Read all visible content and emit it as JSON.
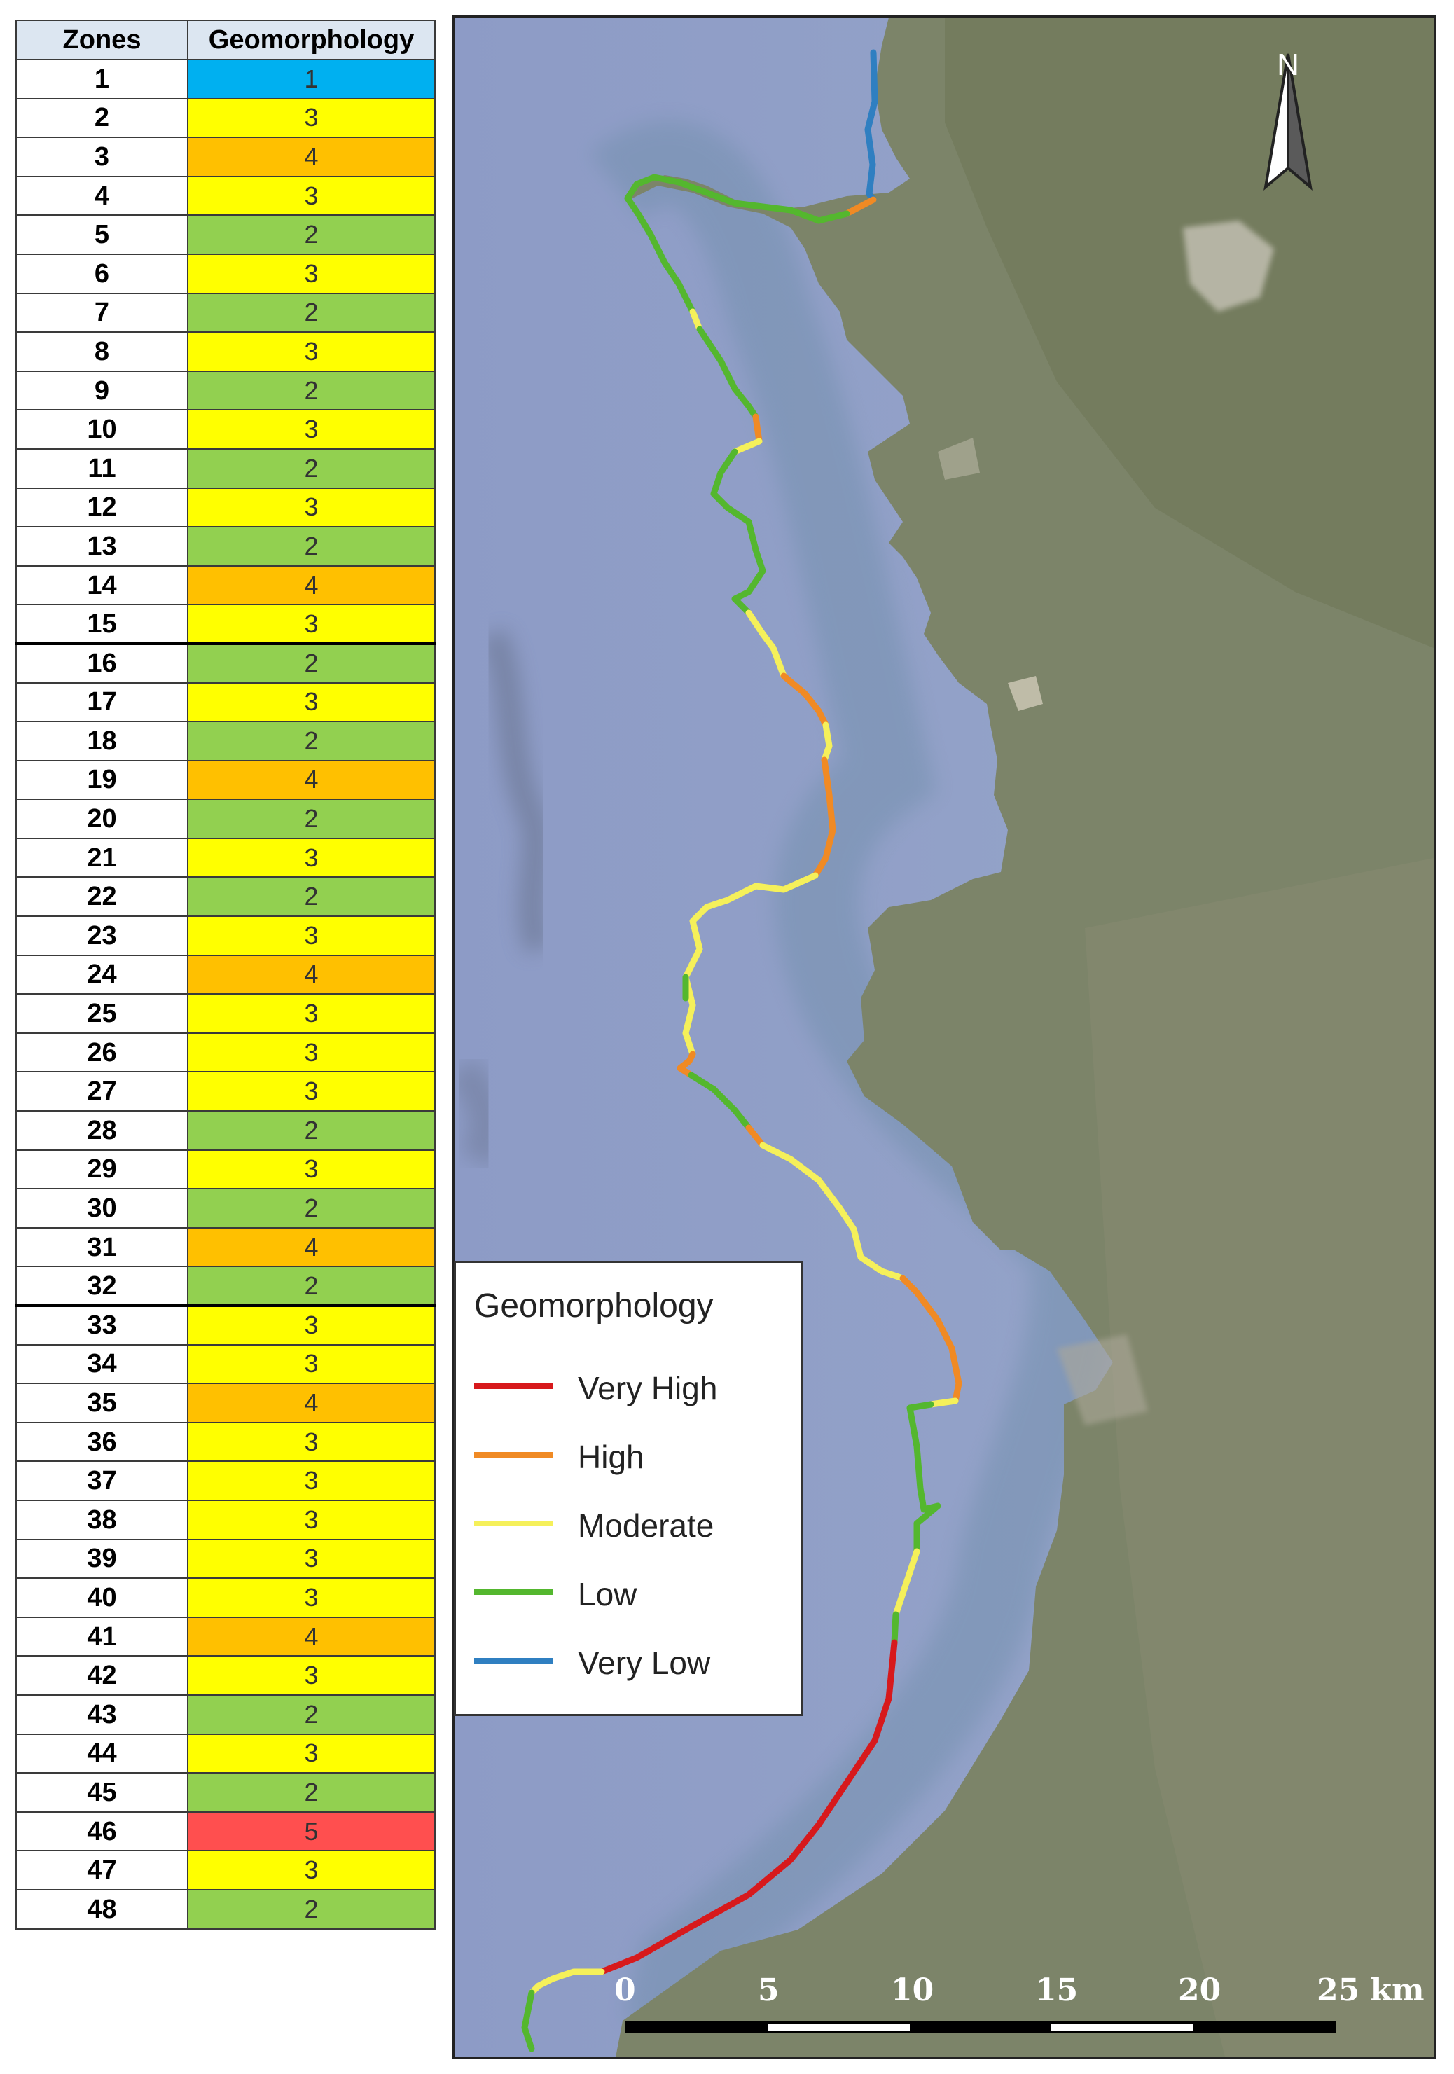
{
  "table": {
    "headers": {
      "zones": "Zones",
      "geomorphology": "Geomorphology"
    },
    "rows": [
      {
        "zone": "1",
        "value": "1"
      },
      {
        "zone": "2",
        "value": "3"
      },
      {
        "zone": "3",
        "value": "4"
      },
      {
        "zone": "4",
        "value": "3"
      },
      {
        "zone": "5",
        "value": "2"
      },
      {
        "zone": "6",
        "value": "3"
      },
      {
        "zone": "7",
        "value": "2"
      },
      {
        "zone": "8",
        "value": "3"
      },
      {
        "zone": "9",
        "value": "2"
      },
      {
        "zone": "10",
        "value": "3"
      },
      {
        "zone": "11",
        "value": "2"
      },
      {
        "zone": "12",
        "value": "3"
      },
      {
        "zone": "13",
        "value": "2"
      },
      {
        "zone": "14",
        "value": "4"
      },
      {
        "zone": "15",
        "value": "3"
      },
      {
        "zone": "16",
        "value": "2"
      },
      {
        "zone": "17",
        "value": "3"
      },
      {
        "zone": "18",
        "value": "2"
      },
      {
        "zone": "19",
        "value": "4"
      },
      {
        "zone": "20",
        "value": "2"
      },
      {
        "zone": "21",
        "value": "3"
      },
      {
        "zone": "22",
        "value": "2"
      },
      {
        "zone": "23",
        "value": "3"
      },
      {
        "zone": "24",
        "value": "4"
      },
      {
        "zone": "25",
        "value": "3"
      },
      {
        "zone": "26",
        "value": "3"
      },
      {
        "zone": "27",
        "value": "3"
      },
      {
        "zone": "28",
        "value": "2"
      },
      {
        "zone": "29",
        "value": "3"
      },
      {
        "zone": "30",
        "value": "2"
      },
      {
        "zone": "31",
        "value": "4"
      },
      {
        "zone": "32",
        "value": "2"
      },
      {
        "zone": "33",
        "value": "3"
      },
      {
        "zone": "34",
        "value": "3"
      },
      {
        "zone": "35",
        "value": "4"
      },
      {
        "zone": "36",
        "value": "3"
      },
      {
        "zone": "37",
        "value": "3"
      },
      {
        "zone": "38",
        "value": "3"
      },
      {
        "zone": "39",
        "value": "3"
      },
      {
        "zone": "40",
        "value": "3"
      },
      {
        "zone": "41",
        "value": "4"
      },
      {
        "zone": "42",
        "value": "3"
      },
      {
        "zone": "43",
        "value": "2"
      },
      {
        "zone": "44",
        "value": "3"
      },
      {
        "zone": "45",
        "value": "2"
      },
      {
        "zone": "46",
        "value": "5"
      },
      {
        "zone": "47",
        "value": "3"
      },
      {
        "zone": "48",
        "value": "2"
      }
    ],
    "group_breaks_after_zone": [
      "15",
      "32"
    ]
  },
  "value_colors": {
    "1": "#00b0f0",
    "2": "#92d050",
    "3": "#ffff00",
    "4": "#ffc000",
    "5": "#ff4f4f"
  },
  "map": {
    "north_label": "N",
    "legend": {
      "title": "Geomorphology",
      "items": [
        {
          "label": "Very High",
          "color": "#d7191c"
        },
        {
          "label": "High",
          "color": "#f08a24"
        },
        {
          "label": "Moderate",
          "color": "#f5f05a"
        },
        {
          "label": "Low",
          "color": "#54b72e"
        },
        {
          "label": "Very Low",
          "color": "#2f7fc1"
        }
      ]
    },
    "scale_bar": {
      "labels": [
        "0",
        "5",
        "10",
        "15",
        "20",
        "25 km"
      ]
    }
  }
}
